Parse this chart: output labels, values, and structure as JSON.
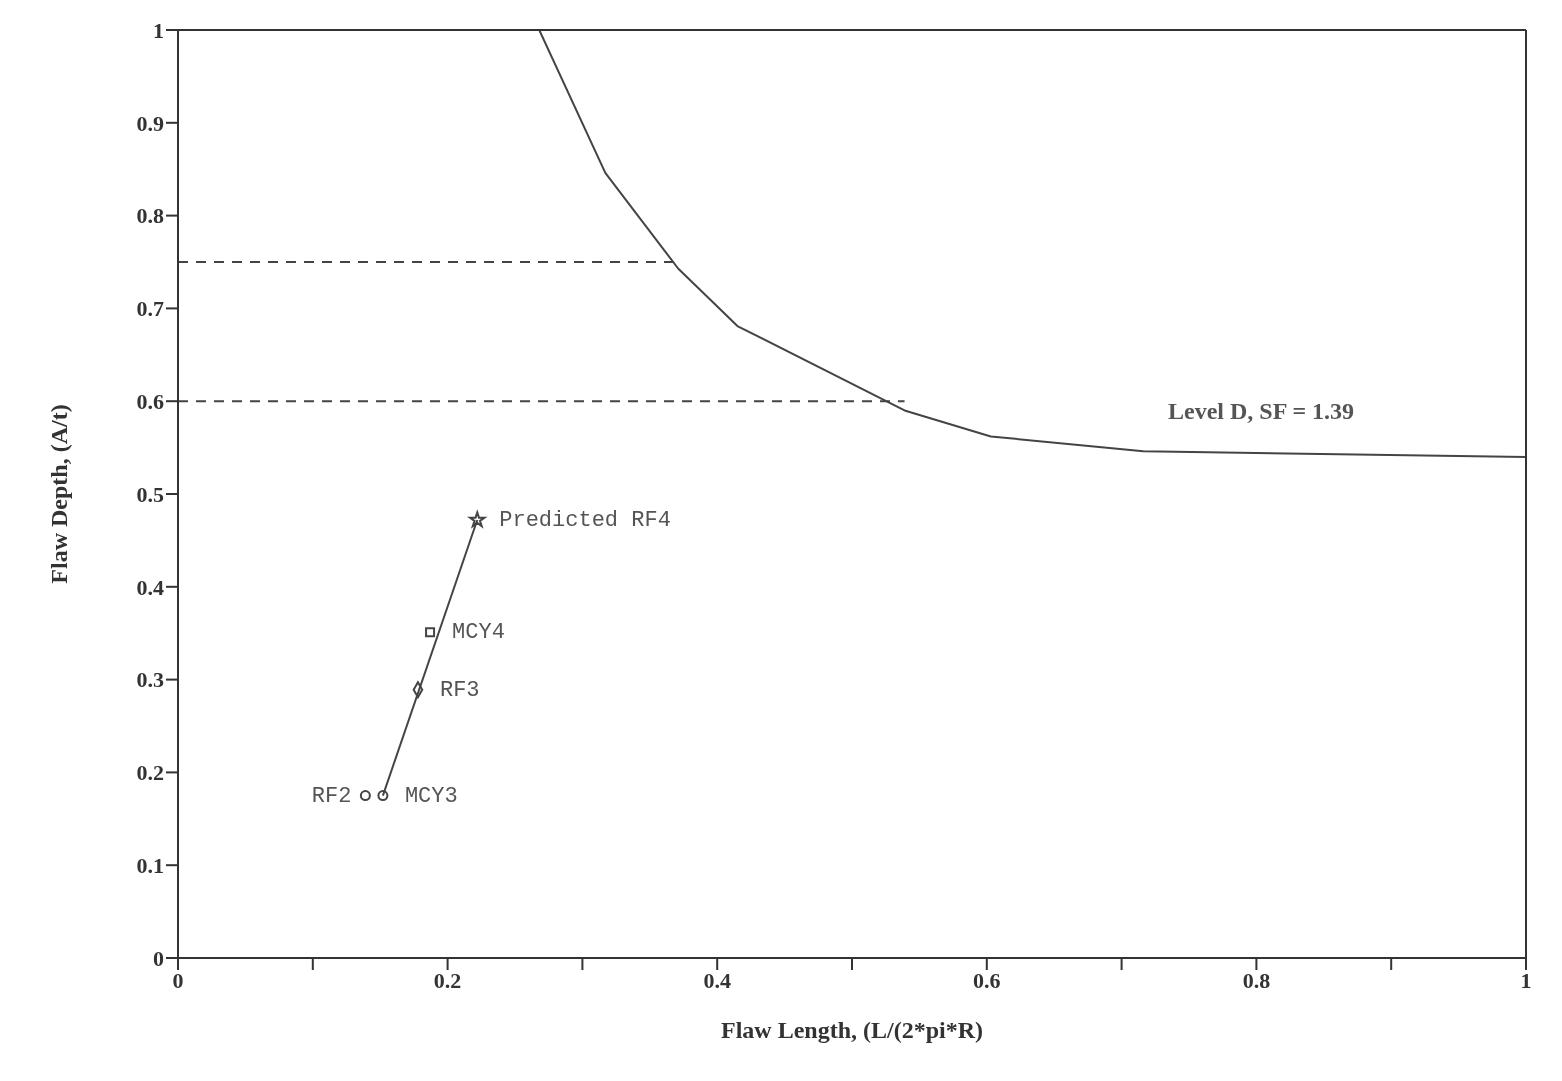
{
  "chart_data": {
    "type": "line",
    "xlabel": "Flaw Length, (L/(2*pi*R)",
    "ylabel": "Flaw Depth, (A/t)",
    "xlim": [
      0,
      1
    ],
    "ylim": [
      0,
      1
    ],
    "xticks": [
      0,
      {
        "value": 0.1,
        "label": null
      },
      {
        "value": 0.2,
        "label": "0.2"
      },
      {
        "value": 0.3,
        "label": null
      },
      {
        "value": 0.4,
        "label": "0.4"
      },
      {
        "value": 0.5,
        "label": null
      },
      {
        "value": 0.6,
        "label": "0.6"
      },
      {
        "value": 0.7,
        "label": null
      },
      {
        "value": 0.8,
        "label": "0.8"
      },
      {
        "value": 0.9,
        "label": null
      },
      1
    ],
    "yticks": [
      0,
      {
        "value": 0.1,
        "label": "0.1"
      },
      {
        "value": 0.2,
        "label": "0.2"
      },
      {
        "value": 0.3,
        "label": "0.3"
      },
      {
        "value": 0.4,
        "label": "0.4"
      },
      {
        "value": 0.5,
        "label": "0.5"
      },
      {
        "value": 0.6,
        "label": "0.6"
      },
      {
        "value": 0.7,
        "label": "0.7"
      },
      {
        "value": 0.8,
        "label": "0.8"
      },
      {
        "value": 0.9,
        "label": "0.9"
      },
      1
    ],
    "grid": false,
    "series": [
      {
        "type": "line",
        "x": [
          0.268,
          0.317,
          0.371,
          0.415,
          0.539,
          0.603,
          0.716,
          1.0
        ],
        "values": [
          1.0,
          0.846,
          0.743,
          0.681,
          0.59,
          0.562,
          0.546,
          0.54
        ],
        "color": "#444444",
        "marker": "none",
        "line_style": "solid"
      },
      {
        "type": "line",
        "x": [
          0,
          0.371
        ],
        "values": [
          0.75,
          0.75
        ],
        "color": "#444444",
        "marker": "none",
        "line_style": "dashed"
      },
      {
        "type": "line",
        "x": [
          0,
          0.539
        ],
        "values": [
          0.6,
          0.6
        ],
        "color": "#444444",
        "marker": "none",
        "line_style": "dashed"
      },
      {
        "type": "line",
        "x": [
          0.152,
          0.222
        ],
        "values": [
          0.175,
          0.472
        ],
        "color": "#444444",
        "marker": "none",
        "line_style": "solid"
      },
      {
        "type": "scatter",
        "x": [
          0.139,
          0.152
        ],
        "values": [
          0.175,
          0.175
        ],
        "color": "#444444",
        "marker": "circle"
      },
      {
        "type": "scatter",
        "x": [
          0.178
        ],
        "values": [
          0.289
        ],
        "color": "#444444",
        "marker": "diamond"
      },
      {
        "type": "scatter",
        "x": [
          0.187
        ],
        "values": [
          0.351
        ],
        "color": "#444444",
        "marker": "square"
      },
      {
        "type": "scatter",
        "x": [
          0.222
        ],
        "values": [
          0.472
        ],
        "color": "#444444",
        "marker": "star"
      }
    ],
    "annotations": [
      {
        "text": "RF2",
        "x": 0.139,
        "y": 0.175
      },
      {
        "text": "MCY3",
        "x": 0.152,
        "y": 0.175
      },
      {
        "text": "RF3",
        "x": 0.178,
        "y": 0.289
      },
      {
        "text": "MCY4",
        "x": 0.187,
        "y": 0.351
      },
      {
        "text": "Predicted RF4",
        "x": 0.222,
        "y": 0.472
      },
      "Level D, SF = 1.39"
    ]
  }
}
